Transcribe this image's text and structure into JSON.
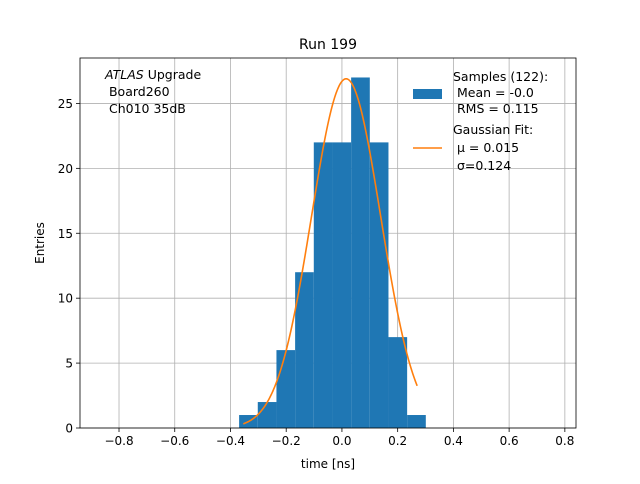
{
  "chart_data": {
    "type": "bar",
    "title": "Run 199",
    "xlabel": "time [ns]",
    "ylabel": "Entries",
    "xlim": [
      -0.94,
      0.84
    ],
    "ylim": [
      0,
      28.5
    ],
    "xticks": [
      -0.8,
      -0.6,
      -0.4,
      -0.2,
      0.0,
      0.2,
      0.4,
      0.6,
      0.8
    ],
    "xtick_labels": [
      "−0.8",
      "−0.6",
      "−0.4",
      "−0.2",
      "0.0",
      "0.2",
      "0.4",
      "0.6",
      "0.8"
    ],
    "yticks": [
      0,
      5,
      10,
      15,
      20,
      25
    ],
    "ytick_labels": [
      "0",
      "5",
      "10",
      "15",
      "20",
      "25"
    ],
    "grid": true,
    "legend_position": "top-right",
    "histogram": {
      "color": "#1f77b4",
      "bin_edges": [
        -0.369,
        -0.302,
        -0.235,
        -0.168,
        -0.101,
        -0.034,
        0.033,
        0.1,
        0.167,
        0.234,
        0.301
      ],
      "counts": [
        1,
        2,
        6,
        12,
        22,
        22,
        27,
        22,
        7,
        1
      ]
    },
    "fit": {
      "color": "#ff7f0e",
      "mu": 0.015,
      "sigma": 0.124,
      "amplitude": 26.9,
      "x_range": [
        -0.354,
        0.27
      ]
    },
    "annotation_lines": [
      "ATLAS",
      " Upgrade",
      " Board260",
      " Ch010 35dB"
    ],
    "legend": {
      "samples_lines": [
        "Samples (122):",
        " Mean = -0.0",
        " RMS = 0.115"
      ],
      "fit_lines": [
        "Gaussian Fit:",
        " μ = 0.015",
        " σ=0.124"
      ]
    }
  }
}
